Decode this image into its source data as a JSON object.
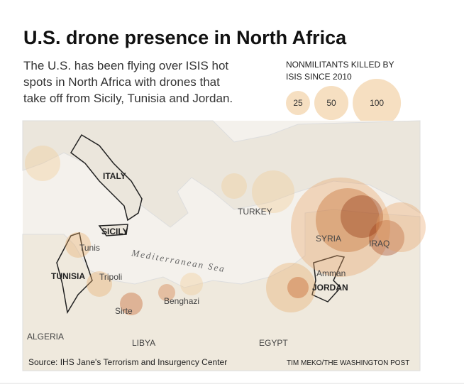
{
  "header": {
    "title": "U.S. drone presence in North Africa",
    "subtitle_lines": [
      "The U.S. has been flying over ISIS hot",
      "spots in North Africa with drones that",
      "take off from Sicily, Tunisia and Jordan."
    ]
  },
  "legend": {
    "title_lines": [
      "NONMILITANTS KILLED BY",
      "ISIS SINCE 2010"
    ],
    "sizes": [
      25,
      50,
      100
    ]
  },
  "map": {
    "labels": {
      "italy": "ITALY",
      "sicily": "SICILY",
      "tunis": "Tunis",
      "tunisia": "TUNISIA",
      "tripoli": "Tripoli",
      "sea": "Mediterranean Sea",
      "sirte": "Sirte",
      "benghazi": "Benghazi",
      "turkey": "TURKEY",
      "syria": "SYRIA",
      "iraq": "IRAQ",
      "amman": "Amman",
      "jordan": "JORDAN",
      "algeria": "ALGERIA",
      "libya": "LIBYA",
      "egypt": "EGYPT"
    }
  },
  "footer": {
    "source": "Source: IHS Jane's Terrorism and Insurgency Center",
    "credit": "TIM MEKO/THE WASHINGTON POST"
  }
}
